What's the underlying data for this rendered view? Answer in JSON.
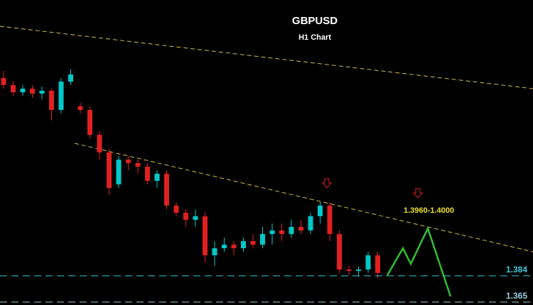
{
  "chart_data": {
    "type": "candlestick",
    "title": "GBPUSD",
    "subtitle": "H1 Chart",
    "annotation": "1.3960-1.4000",
    "up_color": "#00c8c8",
    "down_color": "#e02020",
    "ylim": [
      1.3629,
      1.5838
    ],
    "open": [
      1.5273,
      1.5222,
      1.517,
      1.5196,
      1.516,
      1.5181,
      1.5042,
      1.5247,
      1.5068,
      1.5042,
      1.4862,
      1.4734,
      1.4503,
      1.4682,
      1.4657,
      1.4631,
      1.4528,
      1.458,
      1.4349,
      1.4297,
      1.4246,
      1.4272,
      1.3989,
      1.404,
      1.4066,
      1.404,
      1.4092,
      1.4066,
      1.4143,
      1.4169,
      1.4143,
      1.4195,
      1.4169,
      1.4272,
      1.4349,
      1.4143,
      1.3886,
      1.3876,
      1.3886,
      1.3989
    ],
    "high": [
      1.5324,
      1.5247,
      1.5222,
      1.5222,
      1.5211,
      1.5196,
      1.5273,
      1.5335,
      1.5093,
      1.5068,
      1.4888,
      1.4759,
      1.4708,
      1.4708,
      1.4682,
      1.4657,
      1.4605,
      1.4605,
      1.4374,
      1.4323,
      1.4323,
      1.4297,
      1.4092,
      1.4117,
      1.4092,
      1.4117,
      1.4143,
      1.4195,
      1.422,
      1.422,
      1.4246,
      1.4246,
      1.4297,
      1.4374,
      1.4374,
      1.4169,
      1.3912,
      1.3907,
      1.4015,
      1.4015
    ],
    "low": [
      1.5196,
      1.5145,
      1.5145,
      1.5129,
      1.5119,
      1.4965,
      1.5016,
      1.5222,
      1.5016,
      1.4836,
      1.4682,
      1.4426,
      1.4477,
      1.4605,
      1.458,
      1.4503,
      1.4477,
      1.4323,
      1.4272,
      1.4195,
      1.4195,
      1.3938,
      1.3912,
      1.4015,
      1.3989,
      1.4015,
      1.404,
      1.404,
      1.4066,
      1.4092,
      1.4117,
      1.4143,
      1.4143,
      1.422,
      1.4092,
      1.3861,
      1.3845,
      1.3835,
      1.3861,
      1.3825
    ],
    "close": [
      1.5222,
      1.517,
      1.5196,
      1.516,
      1.5181,
      1.5042,
      1.5247,
      1.5299,
      1.5042,
      1.4862,
      1.4734,
      1.4477,
      1.4682,
      1.4657,
      1.4631,
      1.4528,
      1.458,
      1.4349,
      1.4297,
      1.4246,
      1.4272,
      1.3989,
      1.404,
      1.4066,
      1.404,
      1.4092,
      1.4066,
      1.4143,
      1.4169,
      1.4143,
      1.4195,
      1.4169,
      1.4272,
      1.4349,
      1.4143,
      1.3886,
      1.3876,
      1.3886,
      1.3989,
      1.3861
    ],
    "levels": [
      {
        "value": 1.384,
        "color": "#40c8d8"
      },
      {
        "value": 1.365,
        "color": "#9ad0d8"
      }
    ]
  }
}
